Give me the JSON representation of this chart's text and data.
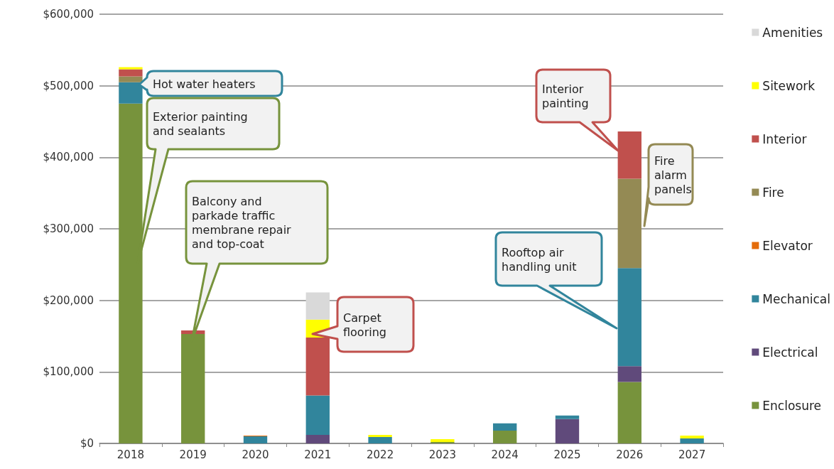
{
  "chart_data": {
    "type": "bar",
    "stacked": true,
    "categories": [
      "2018",
      "2019",
      "2020",
      "2021",
      "2022",
      "2023",
      "2024",
      "2025",
      "2026",
      "2027"
    ],
    "series": [
      {
        "name": "Enclosure",
        "color": "#77933c",
        "values": [
          475000,
          153000,
          null,
          null,
          null,
          2000,
          18000,
          null,
          86000,
          null
        ]
      },
      {
        "name": "Electrical",
        "color": "#604a7b",
        "values": [
          null,
          null,
          null,
          12000,
          null,
          null,
          null,
          34000,
          22000,
          null
        ]
      },
      {
        "name": "Mechanical",
        "color": "#31859c",
        "values": [
          30000,
          null,
          10000,
          55000,
          9000,
          null,
          10000,
          5000,
          137000,
          7000
        ]
      },
      {
        "name": "Elevator",
        "color": "#e46c0a",
        "values": [
          null,
          null,
          1000,
          null,
          null,
          null,
          null,
          null,
          null,
          null
        ]
      },
      {
        "name": "Fire",
        "color": "#948a54",
        "values": [
          8000,
          null,
          null,
          null,
          null,
          null,
          null,
          null,
          125000,
          null
        ]
      },
      {
        "name": "Interior",
        "color": "#c0504d",
        "values": [
          10000,
          5000,
          null,
          81000,
          null,
          null,
          null,
          null,
          66000,
          null
        ]
      },
      {
        "name": "Sitework",
        "color": "#ffff00",
        "values": [
          3000,
          null,
          null,
          25000,
          3000,
          4000,
          null,
          null,
          null,
          4000
        ]
      },
      {
        "name": "Amenities",
        "color": "#d9d9d9",
        "values": [
          null,
          null,
          null,
          38000,
          null,
          null,
          null,
          null,
          null,
          null
        ]
      }
    ],
    "ylim": [
      0,
      600000
    ],
    "yticks": [
      {
        "value": 0,
        "label": "$0"
      },
      {
        "value": 100000,
        "label": "$100,000"
      },
      {
        "value": 200000,
        "label": "$200,000"
      },
      {
        "value": 300000,
        "label": "$300,000"
      },
      {
        "value": 400000,
        "label": "$400,000"
      },
      {
        "value": 500000,
        "label": "$500,000"
      },
      {
        "value": 600000,
        "label": "$600,000"
      }
    ],
    "grid": "y",
    "legend": "right",
    "annotations": [
      "Hot water heaters",
      "Exterior painting\nand sealants",
      "Balcony and\nparkade traffic\nmembrane repair\nand top-coat",
      "Carpet\nflooring",
      "Interior\npainting",
      "Fire\nalarm\npanels",
      "Rooftop air\nhandling unit"
    ]
  }
}
